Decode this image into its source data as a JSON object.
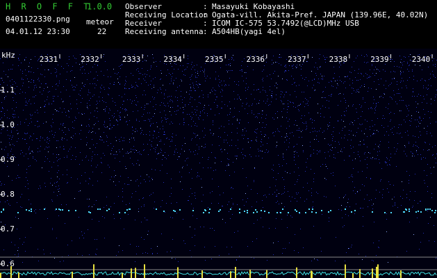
{
  "header": {
    "app_name": "H R O F F T",
    "version": "1.0.0",
    "file_name": "0401122330.png",
    "meteor_label": "meteor",
    "timestamp": "04.01.12 23:30",
    "meteor_count": "22"
  },
  "station": {
    "rows": [
      {
        "label": "Observer",
        "value": "Masayuki Kobayashi"
      },
      {
        "label": "Receiving Location",
        "value": "Ogata-vill. Akita-Pref. JAPAN (139.96E, 40.02N)"
      },
      {
        "label": "Receiver",
        "value": "ICOM IC-575 53.7492(@LCD)MHz USB"
      },
      {
        "label": "Receiving antenna",
        "value": "A504HB(yagi 4el)"
      }
    ]
  },
  "chart_data": {
    "type": "spectrogram",
    "y_label": "kHz",
    "categories": [
      "2331",
      "2332",
      "2333",
      "2334",
      "2335",
      "2336",
      "2337",
      "2338",
      "2339",
      "2340"
    ],
    "ylim": [
      0.56,
      1.204
    ],
    "yticks": [
      0.6,
      0.7,
      0.8,
      0.9,
      {
        "value": 1.0,
        "label": "1.0"
      },
      1.1
    ]
  }
}
